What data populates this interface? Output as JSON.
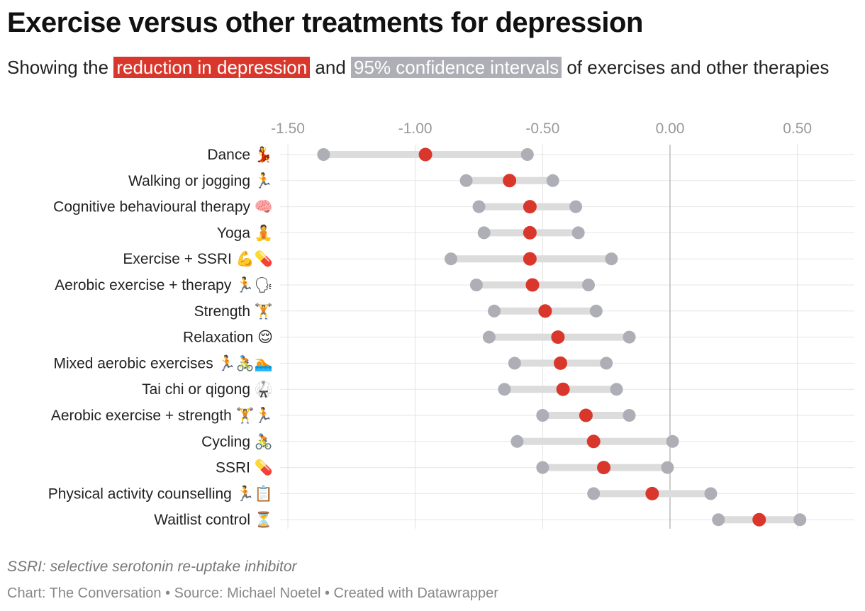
{
  "title": "Exercise versus other treatments for depression",
  "subtitle": {
    "prefix": "Showing the",
    "highlight_red": "reduction in depression",
    "middle": "and",
    "highlight_grey": "95% confidence intervals",
    "suffix": "of exercises and other therapies"
  },
  "note": "SSRI: selective serotonin re-uptake inhibitor",
  "credit": "Chart: The Conversation • Source: Michael Noetel • Created with Datawrapper",
  "colors": {
    "point": "#d9372b",
    "ci_end": "#aeaeb6",
    "ci_bar": "#dcdcdc"
  },
  "chart_data": {
    "type": "range-dot",
    "xlim": [
      -1.6,
      0.7
    ],
    "x_ticks": [
      "-1.50",
      "-1.00",
      "-0.50",
      "0.00",
      "0.50"
    ],
    "x_tick_values": [
      -1.5,
      -1.0,
      -0.5,
      0.0,
      0.5
    ],
    "grid": true,
    "rows": [
      {
        "label": "Dance 💃",
        "low": -1.36,
        "value": -0.96,
        "high": -0.56
      },
      {
        "label": "Walking or jogging 🏃",
        "low": -0.8,
        "value": -0.63,
        "high": -0.46
      },
      {
        "label": "Cognitive behavioural therapy 🧠",
        "low": -0.75,
        "value": -0.55,
        "high": -0.37
      },
      {
        "label": "Yoga 🧘",
        "low": -0.73,
        "value": -0.55,
        "high": -0.36
      },
      {
        "label": "Exercise + SSRI 💪💊",
        "low": -0.86,
        "value": -0.55,
        "high": -0.23
      },
      {
        "label": "Aerobic exercise + therapy 🏃🗣",
        "low": -0.76,
        "value": -0.54,
        "high": -0.32
      },
      {
        "label": "Strength 🏋",
        "low": -0.69,
        "value": -0.49,
        "high": -0.29
      },
      {
        "label": "Relaxation 😌",
        "low": -0.71,
        "value": -0.44,
        "high": -0.16
      },
      {
        "label": "Mixed aerobic exercises 🏃🚴🏊",
        "low": -0.61,
        "value": -0.43,
        "high": -0.25
      },
      {
        "label": "Tai chi or qigong 🥋",
        "low": -0.65,
        "value": -0.42,
        "high": -0.21
      },
      {
        "label": "Aerobic exercise + strength 🏋🏃",
        "low": -0.5,
        "value": -0.33,
        "high": -0.16
      },
      {
        "label": "Cycling 🚴",
        "low": -0.6,
        "value": -0.3,
        "high": 0.01
      },
      {
        "label": "SSRI 💊",
        "low": -0.5,
        "value": -0.26,
        "high": -0.01
      },
      {
        "label": "Physical activity counselling 🏃📋",
        "low": -0.3,
        "value": -0.07,
        "high": 0.16
      },
      {
        "label": "Waitlist control ⏳",
        "low": 0.19,
        "value": 0.35,
        "high": 0.51
      }
    ]
  }
}
